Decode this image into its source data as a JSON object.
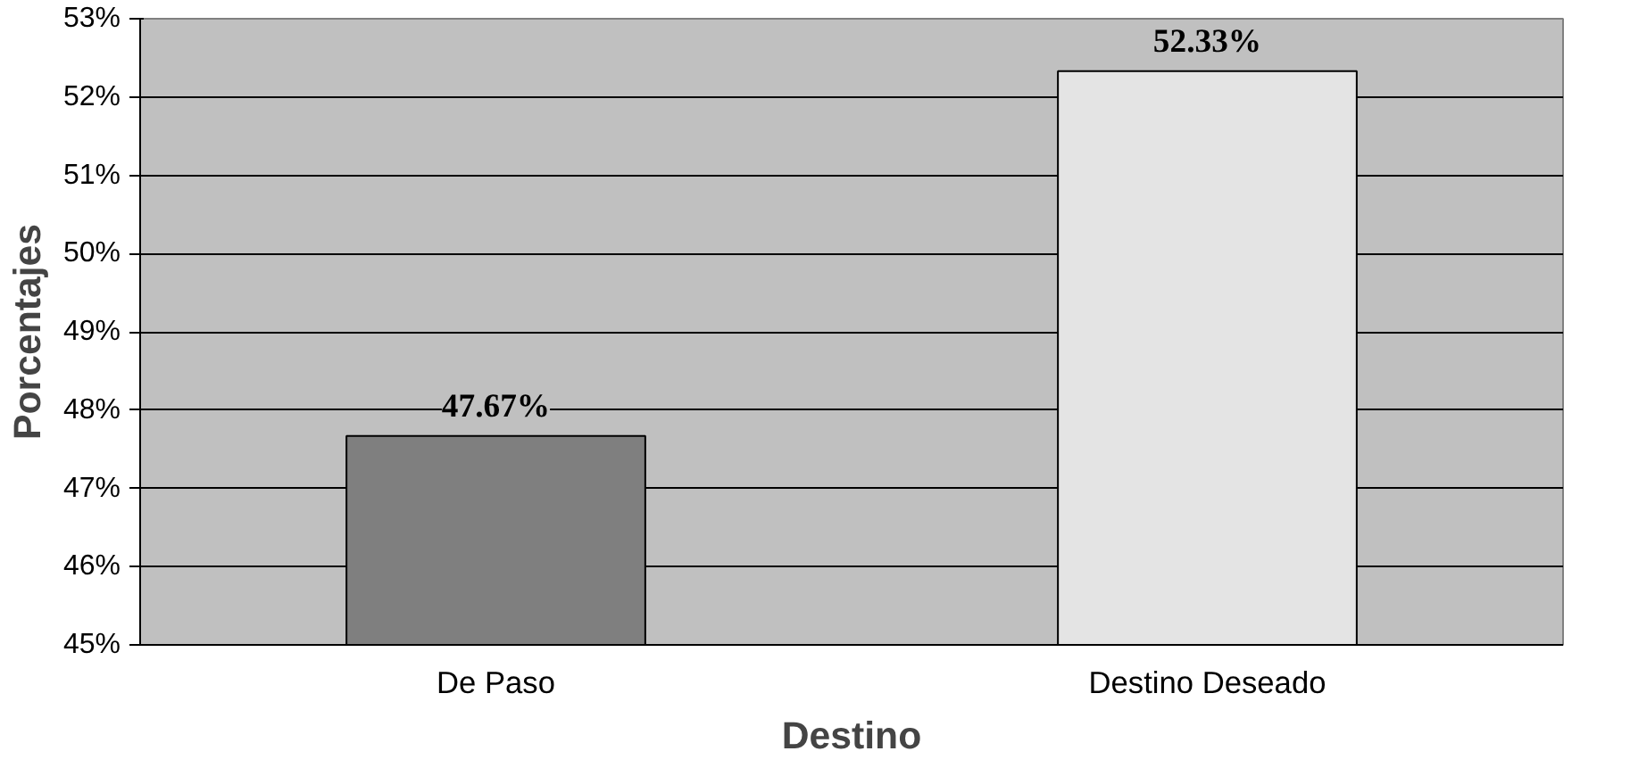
{
  "chart_data": {
    "type": "bar",
    "xlabel": "Destino",
    "ylabel": "Porcentajes",
    "categories": [
      "De Paso",
      "Destino Deseado"
    ],
    "values": [
      47.67,
      52.33
    ],
    "colors": [
      "#7f7f7f",
      "#e4e4e4"
    ],
    "value_labels": [
      "47.67%",
      "52.33%"
    ],
    "ylim": [
      45,
      53
    ],
    "yticks": [
      {
        "value": 45,
        "label": "45%"
      },
      {
        "value": 46,
        "label": "46%"
      },
      {
        "value": 47,
        "label": "47%"
      },
      {
        "value": 48,
        "label": "48%"
      },
      {
        "value": 49,
        "label": "49%"
      },
      {
        "value": 50,
        "label": "50%"
      },
      {
        "value": 51,
        "label": "51%"
      },
      {
        "value": 52,
        "label": "52%"
      },
      {
        "value": 53,
        "label": "53%"
      }
    ],
    "grid": "y"
  }
}
